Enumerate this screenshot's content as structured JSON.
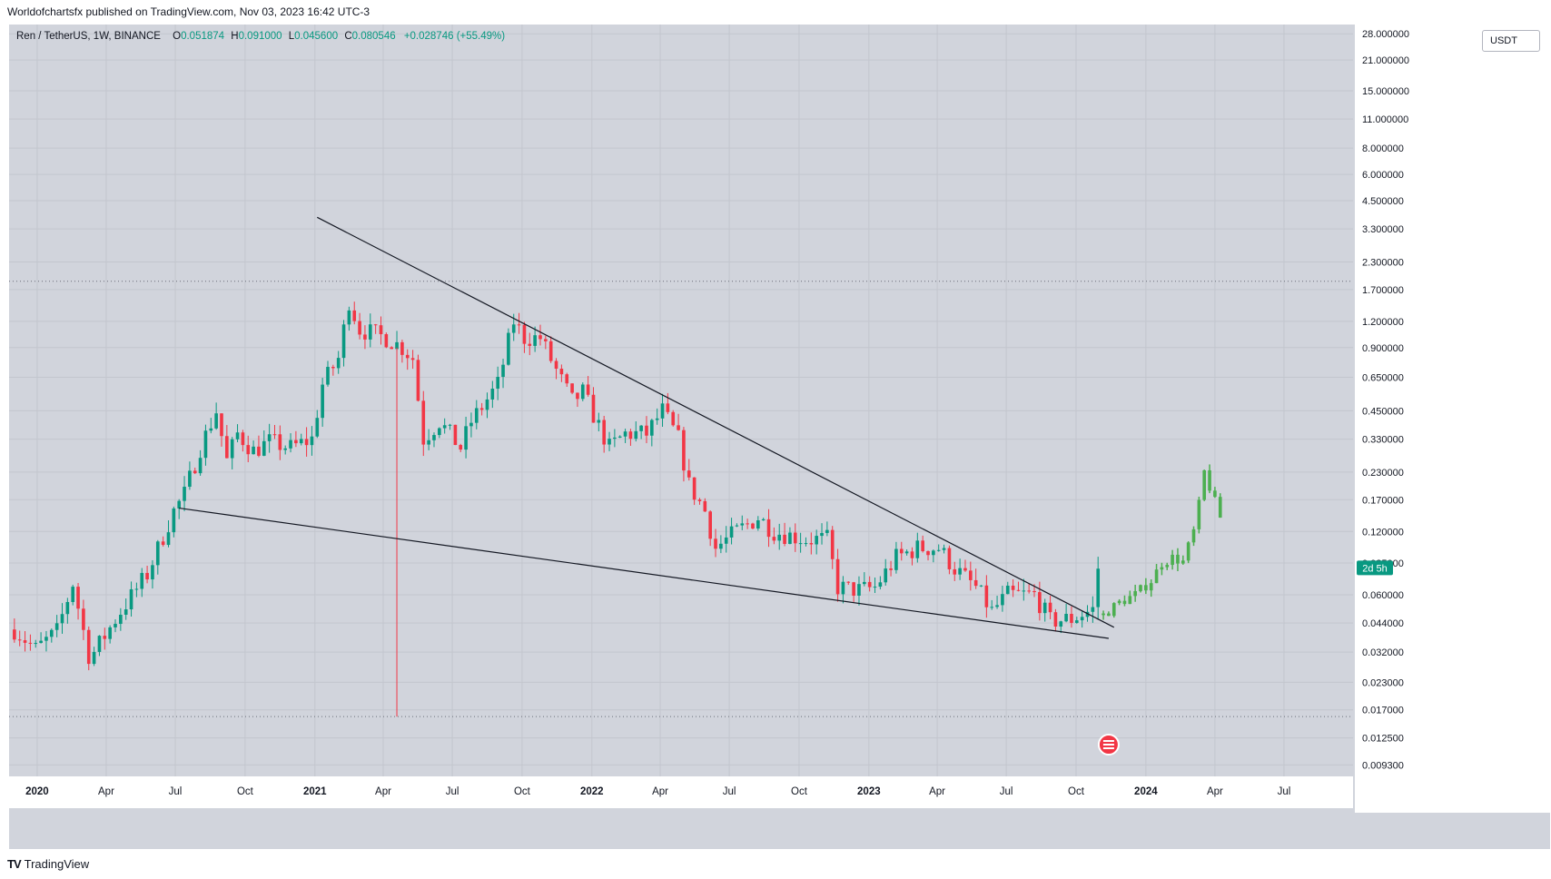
{
  "header": {
    "published": "Worldofchartsfx published on TradingView.com, Nov 03, 2023 16:42 UTC-3"
  },
  "legend": {
    "symbol": "Ren / TetherUS, 1W, BINANCE",
    "open_label": "O",
    "open": "0.051874",
    "high_label": "H",
    "high": "0.091000",
    "low_label": "L",
    "low": "0.045600",
    "close_label": "C",
    "close": "0.080546",
    "change": "+0.028746 (+55.49%)"
  },
  "currency_button": "USDT",
  "countdown_label": "2d 5h",
  "footer": {
    "brand": "TradingView",
    "brand_icon": "tradingview-logo-icon"
  },
  "colors": {
    "up": "#089981",
    "down": "#f23645",
    "projection": "#4caf50",
    "background": "#d1d4dc",
    "trendline": "#131722"
  },
  "chart_data": {
    "type": "candlestick",
    "symbol": "Ren / TetherUS",
    "interval": "1W",
    "y_scale": "log",
    "y_ticks": [
      "28.000000",
      "21.000000",
      "15.000000",
      "11.000000",
      "8.000000",
      "6.000000",
      "4.500000",
      "3.300000",
      "2.300000",
      "1.700000",
      "1.200000",
      "0.900000",
      "0.650000",
      "0.450000",
      "0.330000",
      "0.230000",
      "0.170000",
      "0.120000",
      "0.085000",
      "0.060000",
      "0.044000",
      "0.032000",
      "0.023000",
      "0.017000",
      "0.012500",
      "0.009300"
    ],
    "x_ticks": [
      "2020",
      "Apr",
      "Jul",
      "Oct",
      "2021",
      "Apr",
      "Jul",
      "Oct",
      "2022",
      "Apr",
      "Jul",
      "Oct",
      "2023",
      "Apr",
      "Jul",
      "Oct",
      "2024",
      "Apr",
      "Jul"
    ],
    "x_range": [
      "2019-11-25",
      "2024-09-30"
    ],
    "ylim": [
      0.0082,
      31
    ],
    "grid": true,
    "horizontal_levels": [
      1.86,
      0.0158
    ],
    "trendlines": [
      {
        "from": [
          "2021-01-04",
          3.75
        ],
        "to": [
          "2023-11-20",
          0.042
        ]
      },
      {
        "from": [
          "2020-07-06",
          0.155
        ],
        "to": [
          "2023-11-13",
          0.0372
        ]
      }
    ],
    "anchors": [
      [
        "2019-12-02",
        0.041
      ],
      [
        "2019-12-30",
        0.033
      ],
      [
        "2020-01-27",
        0.04
      ],
      [
        "2020-02-17",
        0.068
      ],
      [
        "2020-03-09",
        0.031
      ],
      [
        "2020-03-16",
        0.032
      ],
      [
        "2020-04-20",
        0.05
      ],
      [
        "2020-05-25",
        0.075
      ],
      [
        "2020-06-29",
        0.15
      ],
      [
        "2020-07-13",
        0.18
      ],
      [
        "2020-08-03",
        0.3
      ],
      [
        "2020-08-24",
        0.45
      ],
      [
        "2020-09-07",
        0.26
      ],
      [
        "2020-09-21",
        0.35
      ],
      [
        "2020-10-12",
        0.29
      ],
      [
        "2020-11-02",
        0.32
      ],
      [
        "2020-11-30",
        0.3
      ],
      [
        "2020-12-28",
        0.33
      ],
      [
        "2021-01-11",
        0.6
      ],
      [
        "2021-02-01",
        0.8
      ],
      [
        "2021-02-15",
        1.5
      ],
      [
        "2021-03-01",
        1.1
      ],
      [
        "2021-04-05",
        1.0
      ],
      [
        "2021-04-26",
        0.9
      ],
      [
        "2021-05-10",
        0.8
      ],
      [
        "2021-05-24",
        0.33
      ],
      [
        "2021-06-14",
        0.4
      ],
      [
        "2021-07-12",
        0.3
      ],
      [
        "2021-07-26",
        0.4
      ],
      [
        "2021-08-30",
        0.6
      ],
      [
        "2021-09-20",
        1.2
      ],
      [
        "2021-10-04",
        1.0
      ],
      [
        "2021-10-25",
        1.0
      ],
      [
        "2021-11-15",
        0.7
      ],
      [
        "2021-12-06",
        0.5
      ],
      [
        "2021-12-20",
        0.55
      ],
      [
        "2022-01-10",
        0.38
      ],
      [
        "2022-01-24",
        0.3
      ],
      [
        "2022-02-14",
        0.35
      ],
      [
        "2022-03-14",
        0.35
      ],
      [
        "2022-04-04",
        0.45
      ],
      [
        "2022-04-25",
        0.33
      ],
      [
        "2022-05-09",
        0.2
      ],
      [
        "2022-05-30",
        0.15
      ],
      [
        "2022-06-13",
        0.1
      ],
      [
        "2022-07-11",
        0.12
      ],
      [
        "2022-08-08",
        0.14
      ],
      [
        "2022-08-29",
        0.12
      ],
      [
        "2022-10-10",
        0.11
      ],
      [
        "2022-11-07",
        0.11
      ],
      [
        "2022-11-21",
        0.065
      ],
      [
        "2022-12-19",
        0.063
      ],
      [
        "2023-01-09",
        0.065
      ],
      [
        "2023-02-06",
        0.09
      ],
      [
        "2023-03-06",
        0.1
      ],
      [
        "2023-04-03",
        0.1
      ],
      [
        "2023-04-24",
        0.08
      ],
      [
        "2023-05-22",
        0.065
      ],
      [
        "2023-06-12",
        0.05
      ],
      [
        "2023-07-03",
        0.06
      ],
      [
        "2023-08-07",
        0.06
      ],
      [
        "2023-08-28",
        0.045
      ],
      [
        "2023-09-25",
        0.046
      ],
      [
        "2023-10-23",
        0.051
      ],
      [
        "2023-10-30",
        0.0805
      ]
    ],
    "projection": [
      [
        "2023-11-06",
        0.048
      ],
      [
        "2023-11-27",
        0.055
      ],
      [
        "2023-12-18",
        0.06
      ],
      [
        "2024-01-08",
        0.07
      ],
      [
        "2024-01-22",
        0.085
      ],
      [
        "2024-02-05",
        0.09
      ],
      [
        "2024-02-19",
        0.086
      ],
      [
        "2024-03-04",
        0.12
      ],
      [
        "2024-03-11",
        0.16
      ],
      [
        "2024-03-18",
        0.23
      ],
      [
        "2024-04-08",
        0.14
      ]
    ]
  }
}
